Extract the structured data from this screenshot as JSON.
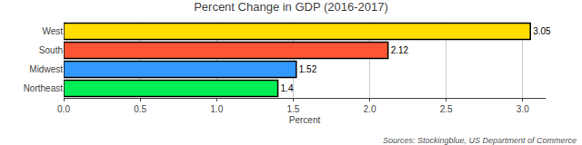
{
  "chart_data": {
    "type": "bar",
    "orientation": "horizontal",
    "title": "Percent Change in GDP (2016-2017)",
    "xlabel": "Percent",
    "categories": [
      "Northeast",
      "Midwest",
      "South",
      "West"
    ],
    "values": [
      1.4,
      1.52,
      2.12,
      3.05
    ],
    "colors": [
      "#00ee55",
      "#3399ff",
      "#ff5533",
      "#ffdd00"
    ],
    "data_labels": true,
    "xlim": [
      0,
      3.15
    ],
    "xticks": [
      {
        "value": 0.0,
        "label": "0.0"
      },
      0.5,
      {
        "value": 1.0,
        "label": "1.0"
      },
      1.5,
      {
        "value": 2.0,
        "label": "2.0"
      },
      2.5,
      {
        "value": 3.0,
        "label": "3.0"
      }
    ],
    "grid": true,
    "annotations": [
      "Sources: Stockingblue, US Department of Commerce"
    ]
  }
}
